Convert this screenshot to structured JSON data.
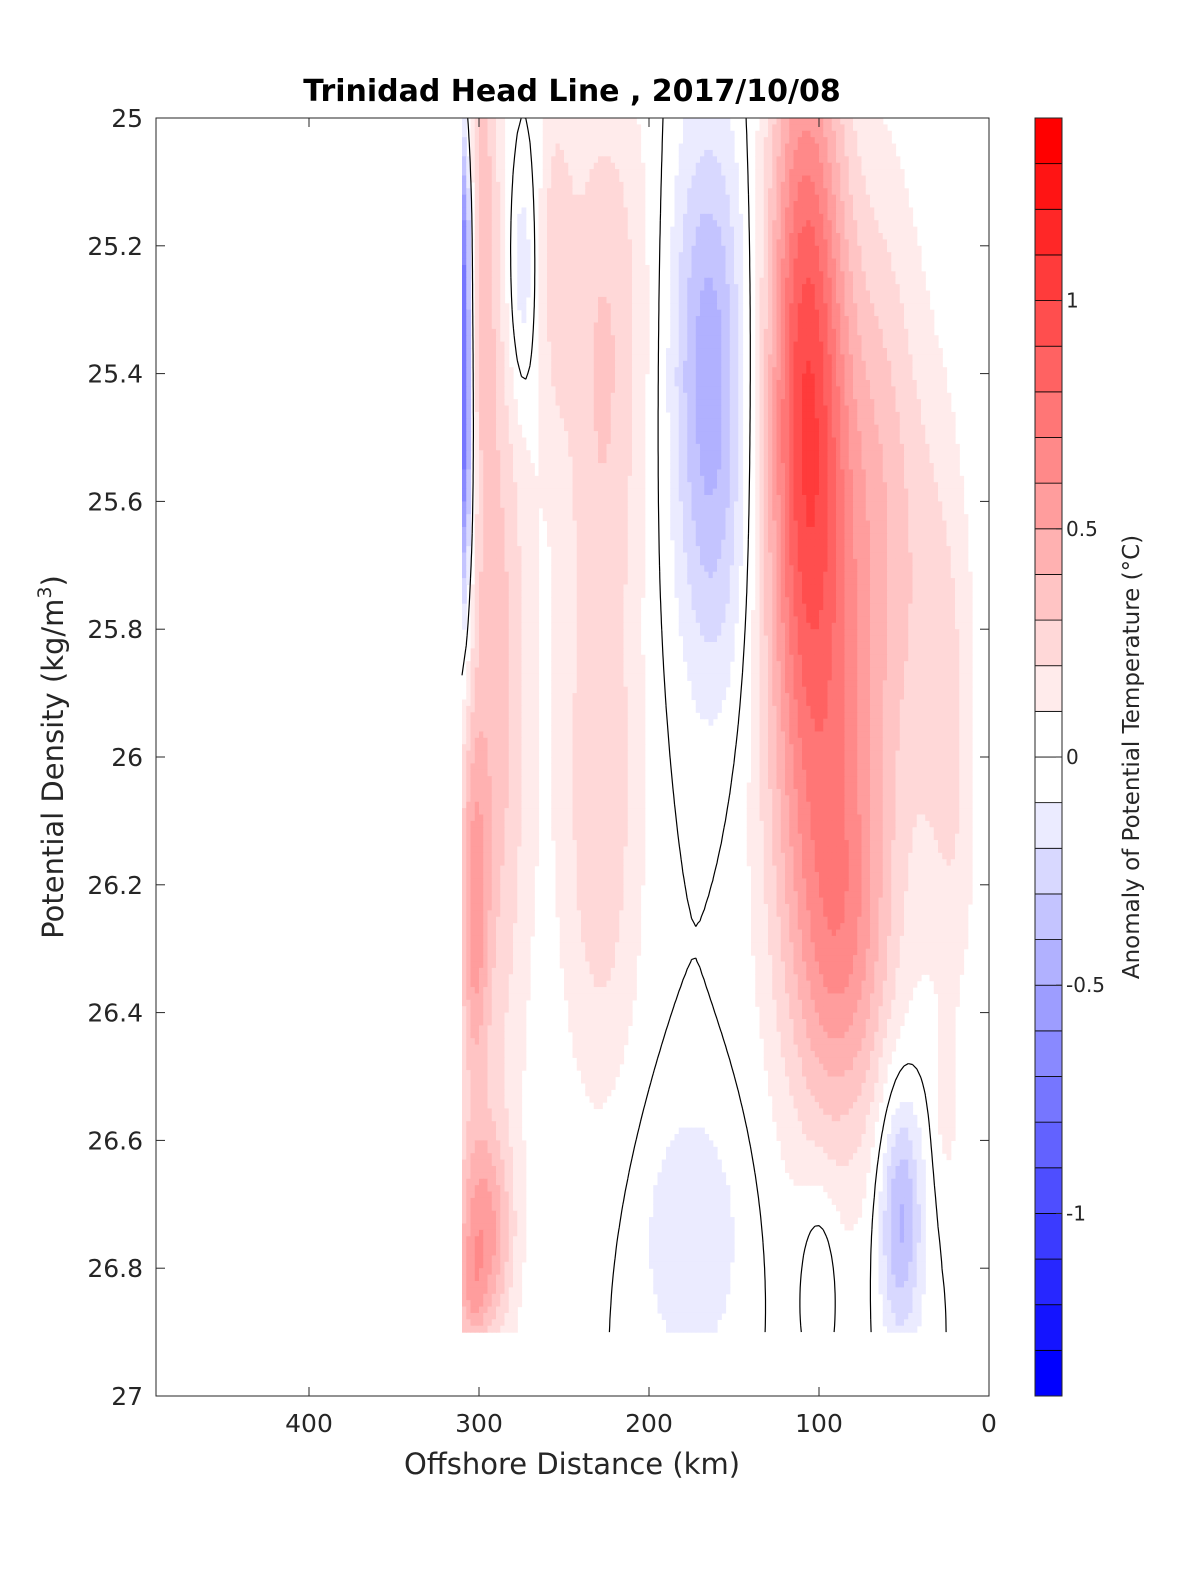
{
  "chart_data": {
    "type": "heatmap",
    "title": "Trinidad Head Line , 2017/10/08",
    "xlabel": "Offshore Distance (km)",
    "ylabel_main": "Potential Density (kg/m",
    "ylabel_sup": "3",
    "ylabel_end": ")",
    "xlim": [
      490,
      0
    ],
    "x_reversed": true,
    "ylim": [
      25,
      27
    ],
    "y_reversed": true,
    "x_ticks": [
      400,
      300,
      200,
      100,
      0
    ],
    "x_tick_labels": [
      "400",
      "300",
      "200",
      "100",
      "0"
    ],
    "y_ticks": [
      25,
      25.2,
      25.4,
      25.6,
      25.8,
      26,
      26.2,
      26.4,
      26.6,
      26.8,
      27
    ],
    "y_tick_labels": [
      "25",
      "25.2",
      "25.4",
      "25.6",
      "25.8",
      "26",
      "26.2",
      "26.4",
      "26.6",
      "26.8",
      "27"
    ],
    "colorbar": {
      "label": "Anomaly of Potential Temperature (°C)",
      "range": [
        -1.4,
        1.4
      ],
      "step": 0.1,
      "ticks": [
        1,
        0.5,
        0,
        -0.5,
        -1
      ],
      "tick_labels": [
        "1",
        "0.5",
        "0",
        "-0.5",
        "-1"
      ],
      "color_neg": "#0000ff",
      "color_zero": "#ffffff",
      "color_pos": "#ff0000"
    },
    "grid": false,
    "data_extent": {
      "x": [
        310,
        10
      ],
      "y": [
        25,
        26.9
      ]
    },
    "zero_contour": true,
    "x_stations": [
      310,
      300,
      290,
      280,
      270,
      260,
      250,
      240,
      230,
      220,
      210,
      200,
      190,
      180,
      170,
      160,
      150,
      140,
      130,
      120,
      110,
      100,
      90,
      80,
      70,
      60,
      50,
      40,
      30,
      20,
      10
    ],
    "y_levels": [
      25.0,
      25.1,
      25.2,
      25.3,
      25.4,
      25.5,
      25.6,
      25.7,
      25.8,
      25.9,
      26.0,
      26.1,
      26.2,
      26.3,
      26.4,
      26.5,
      26.6,
      26.7,
      26.8,
      26.9
    ],
    "features": [
      {
        "x": 310,
        "y": 25.45,
        "sx": 4,
        "sy": 0.22,
        "amp": -1.05
      },
      {
        "x": 310,
        "y": 25.15,
        "sx": 4,
        "sy": 0.12,
        "amp": -0.45
      },
      {
        "x": 300,
        "y": 25.1,
        "sx": 8,
        "sy": 0.3,
        "amp": 0.3
      },
      {
        "x": 290,
        "y": 25.9,
        "sx": 14,
        "sy": 0.5,
        "amp": 0.35
      },
      {
        "x": 303,
        "y": 26.25,
        "sx": 6,
        "sy": 0.2,
        "amp": 0.42
      },
      {
        "x": 298,
        "y": 26.75,
        "sx": 12,
        "sy": 0.12,
        "amp": 0.5
      },
      {
        "x": 305,
        "y": 26.85,
        "sx": 6,
        "sy": 0.06,
        "amp": 0.2
      },
      {
        "x": 275,
        "y": 25.25,
        "sx": 6,
        "sy": 0.14,
        "amp": -0.25
      },
      {
        "x": 255,
        "y": 25.2,
        "sx": 7,
        "sy": 0.2,
        "amp": 0.18
      },
      {
        "x": 225,
        "y": 25.3,
        "sx": 20,
        "sy": 0.3,
        "amp": 0.25
      },
      {
        "x": 228,
        "y": 26.15,
        "sx": 18,
        "sy": 0.3,
        "amp": 0.2
      },
      {
        "x": 230,
        "y": 25.8,
        "sx": 16,
        "sy": 0.4,
        "amp": 0.12
      },
      {
        "x": 165,
        "y": 25.35,
        "sx": 16,
        "sy": 0.25,
        "amp": -0.42
      },
      {
        "x": 160,
        "y": 25.7,
        "sx": 16,
        "sy": 0.22,
        "amp": -0.18
      },
      {
        "x": 175,
        "y": 26.75,
        "sx": 22,
        "sy": 0.15,
        "amp": -0.2
      },
      {
        "x": 108,
        "y": 25.35,
        "sx": 16,
        "sy": 0.4,
        "amp": 0.75
      },
      {
        "x": 95,
        "y": 25.9,
        "sx": 26,
        "sy": 0.45,
        "amp": 0.55
      },
      {
        "x": 85,
        "y": 26.3,
        "sx": 20,
        "sy": 0.2,
        "amp": 0.3
      },
      {
        "x": 60,
        "y": 25.55,
        "sx": 16,
        "sy": 0.35,
        "amp": 0.2
      },
      {
        "x": 30,
        "y": 25.8,
        "sx": 14,
        "sy": 0.3,
        "amp": 0.18
      },
      {
        "x": 20,
        "y": 26.1,
        "sx": 10,
        "sy": 0.25,
        "amp": 0.12
      },
      {
        "x": 52,
        "y": 26.72,
        "sx": 9,
        "sy": 0.14,
        "amp": -0.45
      },
      {
        "x": 100,
        "y": 26.8,
        "sx": 8,
        "sy": 0.1,
        "amp": -0.15
      },
      {
        "x": 25,
        "y": 26.55,
        "sx": 5,
        "sy": 0.1,
        "amp": 0.12
      }
    ]
  }
}
